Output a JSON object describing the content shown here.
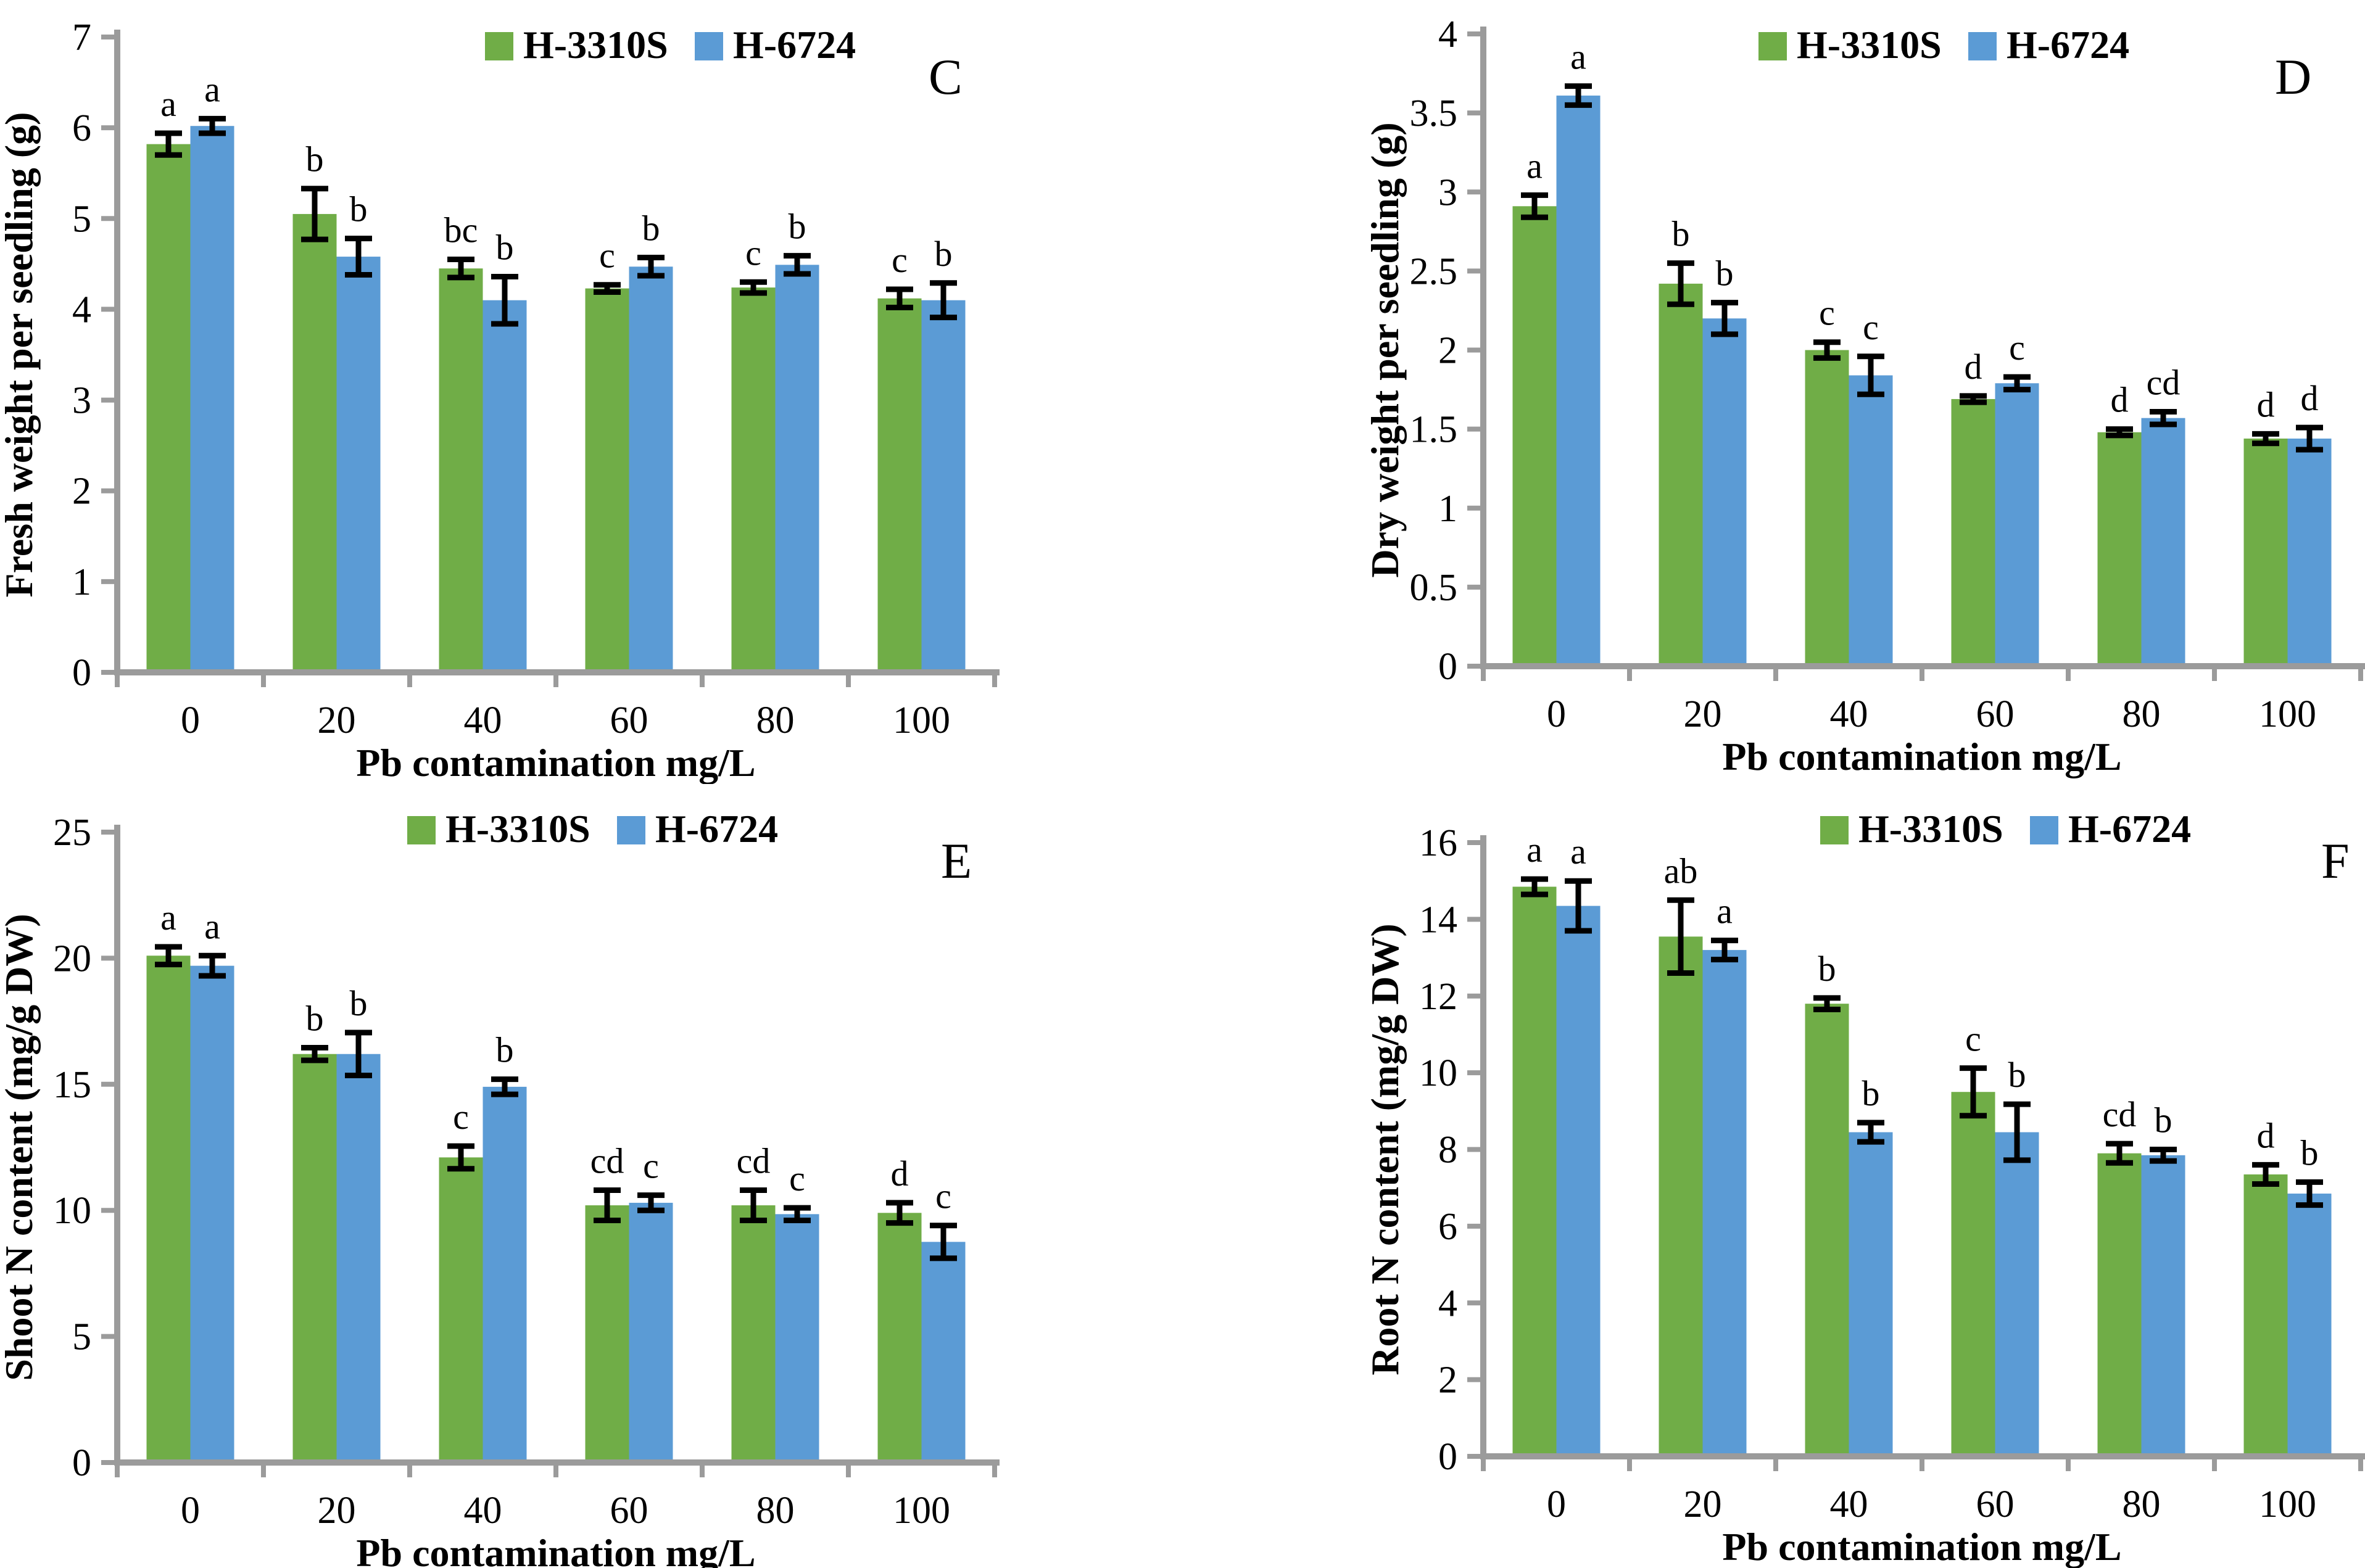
{
  "figure": {
    "background": "#ffffff",
    "axis_color": "#9b9b9b",
    "error_bar_color": "#000000",
    "series_colors": {
      "H-3310S": "#70AD47",
      "H-6724": "#5B9BD5"
    },
    "legend_entries": [
      "H-3310S",
      "H-6724"
    ]
  },
  "chart_data": [
    {
      "type": "bar",
      "panel_letter": "C",
      "title": "",
      "ylabel": "Fresh weight per seedling  (g)",
      "xlabel": "Pb contamination mg/L",
      "legend_position": "top-center",
      "grid": false,
      "categories": [
        "0",
        "20",
        "40",
        "60",
        "80",
        "100"
      ],
      "ylim": [
        0,
        7
      ],
      "yticks": [
        "0",
        "1",
        "2",
        "3",
        "4",
        "5",
        "6",
        "7"
      ],
      "series": [
        {
          "name": "H-3310S",
          "color": "#70AD47",
          "values": [
            5.82,
            5.05,
            4.45,
            4.23,
            4.24,
            4.12
          ],
          "errors": [
            0.12,
            0.28,
            0.1,
            0.04,
            0.06,
            0.1
          ],
          "sig_letters": [
            "a",
            "b",
            "bc",
            "c",
            "c",
            "c"
          ]
        },
        {
          "name": "H-6724",
          "color": "#5B9BD5",
          "values": [
            6.02,
            4.58,
            4.1,
            4.47,
            4.49,
            4.1
          ],
          "errors": [
            0.08,
            0.2,
            0.26,
            0.1,
            0.1,
            0.19
          ],
          "sig_letters": [
            "a",
            "b",
            "b",
            "b",
            "b",
            "b"
          ]
        }
      ]
    },
    {
      "type": "bar",
      "panel_letter": "D",
      "title": "",
      "ylabel": "Dry weight per seedling  (g)",
      "xlabel": "Pb contamination mg/L",
      "legend_position": "top-center",
      "grid": false,
      "categories": [
        "0",
        "20",
        "40",
        "60",
        "80",
        "100"
      ],
      "ylim": [
        0,
        4
      ],
      "yticks": [
        "0",
        "0.5",
        "1",
        "1.5",
        "2",
        "2.5",
        "3",
        "3.5",
        "4"
      ],
      "series": [
        {
          "name": "H-3310S",
          "color": "#70AD47",
          "values": [
            2.91,
            2.42,
            2.0,
            1.69,
            1.48,
            1.44
          ],
          "errors": [
            0.07,
            0.13,
            0.05,
            0.02,
            0.02,
            0.03
          ],
          "sig_letters": [
            "a",
            "b",
            "c",
            "d",
            "d",
            "d"
          ]
        },
        {
          "name": "H-6724",
          "color": "#5B9BD5",
          "values": [
            3.61,
            2.2,
            1.84,
            1.79,
            1.57,
            1.44
          ],
          "errors": [
            0.06,
            0.1,
            0.12,
            0.04,
            0.04,
            0.07
          ],
          "sig_letters": [
            "a",
            "b",
            "c",
            "c",
            "cd",
            "d"
          ]
        }
      ]
    },
    {
      "type": "bar",
      "panel_letter": "E",
      "title": "",
      "ylabel": "Shoot N content  (mg/g DW)",
      "xlabel": "Pb contamination mg/L",
      "legend_position": "top-center",
      "grid": false,
      "categories": [
        "0",
        "20",
        "40",
        "60",
        "80",
        "100"
      ],
      "ylim": [
        0,
        25
      ],
      "yticks": [
        "0",
        "5",
        "10",
        "15",
        "20",
        "25"
      ],
      "series": [
        {
          "name": "H-3310S",
          "color": "#70AD47",
          "values": [
            20.1,
            16.2,
            12.1,
            10.2,
            10.2,
            9.9
          ],
          "errors": [
            0.35,
            0.25,
            0.45,
            0.6,
            0.6,
            0.4
          ],
          "sig_letters": [
            "a",
            "b",
            "c",
            "cd",
            "cd",
            "d"
          ]
        },
        {
          "name": "H-6724",
          "color": "#5B9BD5",
          "values": [
            19.7,
            16.2,
            14.9,
            10.3,
            9.85,
            8.75
          ],
          "errors": [
            0.4,
            0.85,
            0.3,
            0.3,
            0.25,
            0.65
          ],
          "sig_letters": [
            "a",
            "b",
            "b",
            "c",
            "c",
            "c"
          ]
        }
      ]
    },
    {
      "type": "bar",
      "panel_letter": "F",
      "title": "",
      "ylabel": "Root N content  (mg/g DW)",
      "xlabel": "Pb contamination mg/L",
      "legend_position": "top-center",
      "grid": false,
      "categories": [
        "0",
        "20",
        "40",
        "60",
        "80",
        "100"
      ],
      "ylim": [
        0,
        16
      ],
      "yticks": [
        "0",
        "2",
        "4",
        "6",
        "8",
        "10",
        "12",
        "14",
        "16"
      ],
      "series": [
        {
          "name": "H-3310S",
          "color": "#70AD47",
          "values": [
            14.85,
            13.55,
            11.8,
            9.5,
            7.9,
            7.35
          ],
          "errors": [
            0.2,
            0.95,
            0.15,
            0.62,
            0.25,
            0.25
          ],
          "sig_letters": [
            "a",
            "ab",
            "b",
            "c",
            "cd",
            "d"
          ]
        },
        {
          "name": "H-6724",
          "color": "#5B9BD5",
          "values": [
            14.35,
            13.2,
            8.45,
            8.45,
            7.85,
            6.85
          ],
          "errors": [
            0.65,
            0.25,
            0.25,
            0.73,
            0.15,
            0.3
          ],
          "sig_letters": [
            "a",
            "a",
            "b",
            "b",
            "b",
            "b"
          ]
        }
      ]
    }
  ]
}
